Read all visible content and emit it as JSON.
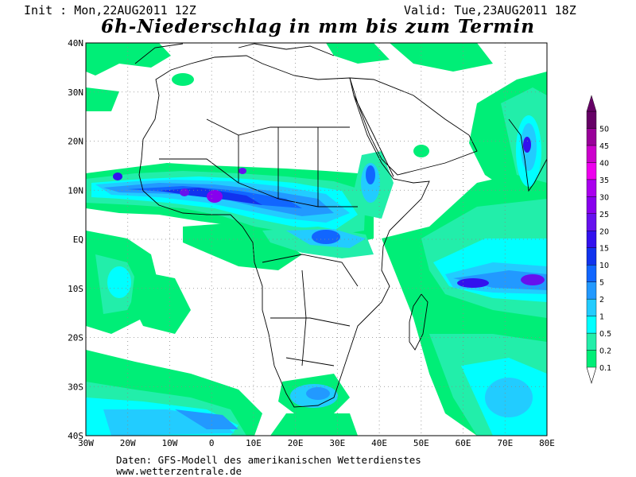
{
  "header": {
    "init": "Init : Mon,22AUG2011 12Z",
    "valid": "Valid: Tue,23AUG2011 18Z",
    "title": "6h-Niederschlag in mm bis zum Termin"
  },
  "map": {
    "lon_range": [
      -30,
      80
    ],
    "lat_range": [
      -40,
      40
    ],
    "lon_ticks": [
      "30W",
      "20W",
      "10W",
      "0",
      "10E",
      "20E",
      "30E",
      "40E",
      "50E",
      "60E",
      "70E",
      "80E"
    ],
    "lat_ticks": [
      "40N",
      "30N",
      "20N",
      "10N",
      "EQ",
      "10S",
      "20S",
      "30S",
      "40S"
    ]
  },
  "legend": {
    "levels": [
      "0.1",
      "0.2",
      "0.5",
      "1",
      "2",
      "5",
      "10",
      "15",
      "20",
      "25",
      "30",
      "35",
      "40",
      "45",
      "50"
    ],
    "colors": [
      "#00ee77",
      "#22eeaa",
      "#00ffff",
      "#22ccff",
      "#2299ff",
      "#1166ff",
      "#1133ee",
      "#3311ee",
      "#6611ee",
      "#8800ee",
      "#aa00ee",
      "#ee00ee",
      "#cc00cc",
      "#990099",
      "#660066"
    ]
  },
  "footer": {
    "line1": "Daten: GFS-Modell des amerikanischen Wetterdienstes",
    "line2": "www.wetterzentrale.de"
  }
}
